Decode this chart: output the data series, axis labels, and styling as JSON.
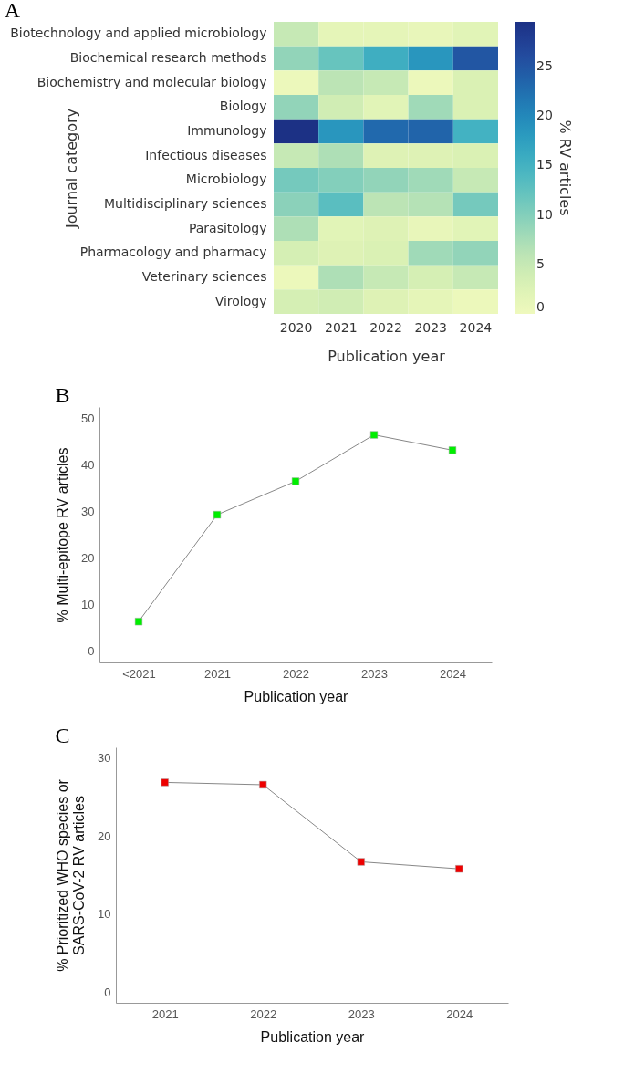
{
  "chart_data": [
    {
      "type": "heatmap",
      "title": "A",
      "xlabel": "Publication year",
      "ylabel": "Journal category",
      "clabel": "% RV articles",
      "categories": [
        "2020",
        "2021",
        "2022",
        "2023",
        "2024"
      ],
      "y_categories": [
        "Biotechnology and applied microbiology",
        "Biochemical research methods",
        "Biochemistry and molecular biology",
        "Biology",
        "Immunology",
        "Infectious diseases",
        "Microbiology",
        "Multidisciplinary sciences",
        "Parasitology",
        "Pharmacology and pharmacy",
        "Veterinary sciences",
        "Virology"
      ],
      "cells": [
        [
          5,
          1.5,
          1.5,
          1,
          2
        ],
        [
          9,
          12,
          15.5,
          18.5,
          25
        ],
        [
          0.5,
          6,
          5,
          0.5,
          3
        ],
        [
          9,
          4,
          2,
          8,
          3
        ],
        [
          29.5,
          18.5,
          23,
          23.5,
          15
        ],
        [
          5,
          7,
          2.5,
          2.5,
          3
        ],
        [
          11,
          10,
          9,
          8,
          5
        ],
        [
          9.5,
          13,
          6,
          6.5,
          11
        ],
        [
          7,
          2,
          2.5,
          1,
          2
        ],
        [
          3.5,
          2.5,
          3,
          8,
          9
        ],
        [
          0.5,
          7,
          5,
          3.5,
          5
        ],
        [
          3.5,
          4,
          2.5,
          1.5,
          0.5
        ]
      ],
      "clim": [
        0,
        29.5
      ],
      "cticks": [
        0,
        5,
        10,
        15,
        20,
        25
      ]
    },
    {
      "type": "line",
      "title": "B",
      "xlabel": "Publication year",
      "ylabel": "% Multi-epitope RV articles",
      "categories": [
        "<2021",
        "2021",
        "2022",
        "2023",
        "2024"
      ],
      "series": [
        {
          "color": "#00ee00",
          "values": [
            6.3,
            29.3,
            36.5,
            46.5,
            43.2
          ]
        }
      ],
      "ylim": [
        -2.5,
        52.5
      ],
      "yticks": [
        0,
        10,
        20,
        30,
        40,
        50
      ],
      "grid": false,
      "marker": "square",
      "line_style": "solid"
    },
    {
      "type": "line",
      "title": "C",
      "xlabel": "Publication year",
      "ylabel": "% Prioritized WHO species or\nSARS-CoV-2 RV articles",
      "categories": [
        "2021",
        "2022",
        "2023",
        "2024"
      ],
      "series": [
        {
          "color": "#ee0000",
          "values": [
            26.9,
            26.6,
            16.7,
            15.8
          ]
        }
      ],
      "ylim": [
        -1.4,
        31.4
      ],
      "yticks": [
        0,
        10,
        20,
        30
      ],
      "grid": false,
      "marker": "square",
      "line_style": "solid"
    }
  ]
}
